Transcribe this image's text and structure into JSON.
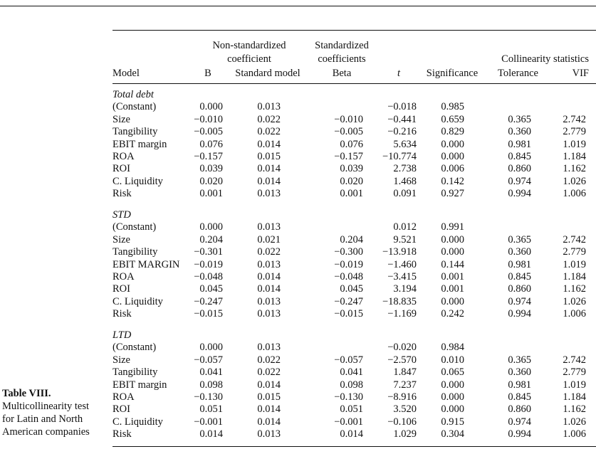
{
  "caption": {
    "title": "Table VIII.",
    "lines": [
      "Multicollinearity test",
      "for Latin and North",
      "American companies"
    ]
  },
  "header": {
    "nonstd_line1": "Non-standardized",
    "nonstd_line2": "coefficient",
    "std_line1": "Standardized",
    "std_line2": "coefficients",
    "colstats": "Collinearity statistics",
    "model": "Model",
    "b": "B",
    "std_model": "Standard model",
    "beta": "Beta",
    "t": "t",
    "significance": "Significance",
    "tolerance": "Tolerance",
    "vif": "VIF"
  },
  "sections": [
    {
      "title": "Total debt",
      "rows": [
        [
          "(Constant)",
          "0.000",
          "0.013",
          "",
          "−0.018",
          "0.985",
          "",
          ""
        ],
        [
          "Size",
          "−0.010",
          "0.022",
          "−0.010",
          "−0.441",
          "0.659",
          "0.365",
          "2.742"
        ],
        [
          "Tangibility",
          "−0.005",
          "0.022",
          "−0.005",
          "−0.216",
          "0.829",
          "0.360",
          "2.779"
        ],
        [
          "EBIT margin",
          "0.076",
          "0.014",
          "0.076",
          "5.634",
          "0.000",
          "0.981",
          "1.019"
        ],
        [
          "ROA",
          "−0.157",
          "0.015",
          "−0.157",
          "−10.774",
          "0.000",
          "0.845",
          "1.184"
        ],
        [
          "ROI",
          "0.039",
          "0.014",
          "0.039",
          "2.738",
          "0.006",
          "0.860",
          "1.162"
        ],
        [
          "C. Liquidity",
          "0.020",
          "0.014",
          "0.020",
          "1.468",
          "0.142",
          "0.974",
          "1.026"
        ],
        [
          "Risk",
          "0.001",
          "0.013",
          "0.001",
          "0.091",
          "0.927",
          "0.994",
          "1.006"
        ]
      ]
    },
    {
      "title": "STD",
      "rows": [
        [
          "(Constant)",
          "0.000",
          "0.013",
          "",
          "0.012",
          "0.991",
          "",
          ""
        ],
        [
          "Size",
          "0.204",
          "0.021",
          "0.204",
          "9.521",
          "0.000",
          "0.365",
          "2.742"
        ],
        [
          "Tangibility",
          "−0.301",
          "0.022",
          "−0.300",
          "−13.918",
          "0.000",
          "0.360",
          "2.779"
        ],
        [
          "EBIT MARGIN",
          "−0.019",
          "0.013",
          "−0.019",
          "−1.460",
          "0.144",
          "0.981",
          "1.019"
        ],
        [
          "ROA",
          "−0.048",
          "0.014",
          "−0.048",
          "−3.415",
          "0.001",
          "0.845",
          "1.184"
        ],
        [
          "ROI",
          "0.045",
          "0.014",
          "0.045",
          "3.194",
          "0.001",
          "0.860",
          "1.162"
        ],
        [
          "C. Liquidity",
          "−0.247",
          "0.013",
          "−0.247",
          "−18.835",
          "0.000",
          "0.974",
          "1.026"
        ],
        [
          "Risk",
          "−0.015",
          "0.013",
          "−0.015",
          "−1.169",
          "0.242",
          "0.994",
          "1.006"
        ]
      ]
    },
    {
      "title": "LTD",
      "rows": [
        [
          "(Constant)",
          "0.000",
          "0.013",
          "",
          "−0.020",
          "0.984",
          "",
          ""
        ],
        [
          "Size",
          "−0.057",
          "0.022",
          "−0.057",
          "−2.570",
          "0.010",
          "0.365",
          "2.742"
        ],
        [
          "Tangibility",
          "0.041",
          "0.022",
          "0.041",
          "1.847",
          "0.065",
          "0.360",
          "2.779"
        ],
        [
          "EBIT margin",
          "0.098",
          "0.014",
          "0.098",
          "7.237",
          "0.000",
          "0.981",
          "1.019"
        ],
        [
          "ROA",
          "−0.130",
          "0.015",
          "−0.130",
          "−8.916",
          "0.000",
          "0.845",
          "1.184"
        ],
        [
          "ROI",
          "0.051",
          "0.014",
          "0.051",
          "3.520",
          "0.000",
          "0.860",
          "1.162"
        ],
        [
          "C. Liquidity",
          "−0.001",
          "0.014",
          "−0.001",
          "−0.106",
          "0.915",
          "0.974",
          "1.026"
        ],
        [
          "Risk",
          "0.014",
          "0.013",
          "0.014",
          "1.029",
          "0.304",
          "0.994",
          "1.006"
        ]
      ]
    }
  ]
}
